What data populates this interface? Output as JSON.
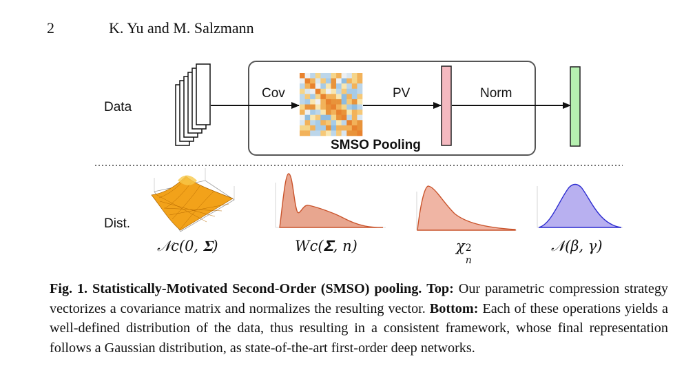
{
  "header": {
    "page_number": "2",
    "authors": "K. Yu and M. Salzmann"
  },
  "figure": {
    "row_labels": {
      "data": "Data",
      "dist": "Dist."
    },
    "arrows": {
      "cov": "Cov",
      "pv": "PV",
      "norm": "Norm"
    },
    "pooling_box_label": "SMSO Pooling",
    "colors": {
      "pv_vector": "#f4b9c0",
      "norm_vector": "#b6f0b0",
      "density_orange": "#e8a68f",
      "density_orange_line": "#c9532b",
      "gaussian_purple": "#b8b0f0",
      "gaussian_line": "#2b2bd0",
      "surface": "#f2a21a"
    },
    "distributions": {
      "d1": {
        "label": "𝒩c(0, 𝚺)"
      },
      "d2": {
        "label": "Wc(𝚺, n)"
      },
      "d3": {
        "label": "χ",
        "sup": "2",
        "sub": "n"
      },
      "d4": {
        "label": "𝒩(β, γ)"
      }
    }
  },
  "caption": {
    "label": "Fig. 1.",
    "title": "Statistically-Motivated Second-Order (SMSO) pooling.",
    "top_label": "Top:",
    "top_text": "Our parametric compression strategy vectorizes a covariance matrix and normalizes the resulting vector.",
    "bottom_label": "Bottom:",
    "bottom_text": "Each of these operations yields a well-defined distribution of the data, thus resulting in a consistent framework, whose final representation follows a Gaussian distribution, as state-of-the-art first-order deep networks."
  }
}
